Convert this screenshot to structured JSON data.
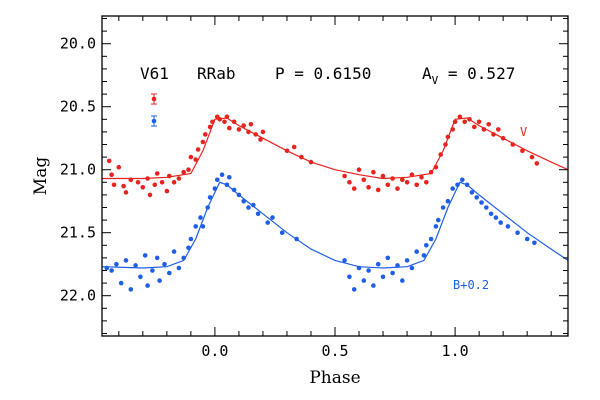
{
  "chart_data": {
    "type": "scatter",
    "xlabel": "Phase",
    "ylabel": "Mag",
    "xlim": [
      -0.47,
      1.47
    ],
    "ylim": [
      22.32,
      19.78
    ],
    "y_inverted": true,
    "x_ticks": [
      "0.0",
      "0.5",
      "1.0"
    ],
    "x_tick_values": [
      0.0,
      0.5,
      1.0
    ],
    "y_ticks": [
      "20.0",
      "20.5",
      "21.0",
      "21.5",
      "22.0"
    ],
    "y_tick_values": [
      20.0,
      20.5,
      21.0,
      21.5,
      22.0
    ],
    "grid": false,
    "header": {
      "star": "V61",
      "type": "RRab",
      "period": "P = 0.6150",
      "amp_prefix": "A",
      "amp_sub": "V",
      "amp_value": " = 0.527"
    },
    "series": [
      {
        "name": "V",
        "color": "#e8231e",
        "label_position": "right",
        "error_bar_mag": 0.04,
        "fit": [
          [
            -0.5,
            21.07
          ],
          [
            -0.3,
            21.07
          ],
          [
            -0.2,
            21.06
          ],
          [
            -0.1,
            21.03
          ],
          [
            -0.05,
            20.85
          ],
          [
            0.0,
            20.6
          ],
          [
            0.05,
            20.59
          ],
          [
            0.1,
            20.65
          ],
          [
            0.2,
            20.75
          ],
          [
            0.3,
            20.85
          ],
          [
            0.4,
            20.94
          ],
          [
            0.5,
            21.0
          ],
          [
            0.6,
            21.04
          ],
          [
            0.7,
            21.07
          ],
          [
            0.8,
            21.06
          ],
          [
            0.9,
            21.03
          ],
          [
            0.95,
            20.85
          ],
          [
            1.0,
            20.6
          ],
          [
            1.05,
            20.59
          ],
          [
            1.1,
            20.65
          ],
          [
            1.2,
            20.75
          ],
          [
            1.3,
            20.85
          ],
          [
            1.4,
            20.94
          ],
          [
            1.5,
            21.0
          ]
        ],
        "points": [
          [
            -0.44,
            20.93
          ],
          [
            -0.43,
            21.04
          ],
          [
            -0.42,
            21.12
          ],
          [
            -0.4,
            20.98
          ],
          [
            -0.38,
            21.13
          ],
          [
            -0.37,
            21.18
          ],
          [
            -0.35,
            21.08
          ],
          [
            -0.32,
            21.1
          ],
          [
            -0.3,
            21.14
          ],
          [
            -0.28,
            21.07
          ],
          [
            -0.27,
            21.2
          ],
          [
            -0.25,
            21.12
          ],
          [
            -0.24,
            21.03
          ],
          [
            -0.22,
            21.1
          ],
          [
            -0.2,
            21.17
          ],
          [
            -0.19,
            21.05
          ],
          [
            -0.17,
            21.1
          ],
          [
            -0.15,
            21.07
          ],
          [
            -0.13,
            21.02
          ],
          [
            -0.11,
            21.0
          ],
          [
            -0.1,
            20.9
          ],
          [
            -0.08,
            20.92
          ],
          [
            -0.07,
            20.84
          ],
          [
            -0.05,
            20.78
          ],
          [
            -0.04,
            20.72
          ],
          [
            -0.02,
            20.66
          ],
          [
            -0.01,
            20.62
          ],
          [
            0.01,
            20.58
          ],
          [
            0.02,
            20.6
          ],
          [
            0.04,
            20.62
          ],
          [
            0.05,
            20.58
          ],
          [
            0.06,
            20.67
          ],
          [
            0.08,
            20.62
          ],
          [
            0.1,
            20.68
          ],
          [
            0.12,
            20.65
          ],
          [
            0.14,
            20.7
          ],
          [
            0.15,
            20.64
          ],
          [
            0.17,
            20.72
          ],
          [
            0.19,
            20.76
          ],
          [
            0.2,
            20.7
          ],
          [
            0.3,
            20.85
          ],
          [
            0.33,
            20.82
          ],
          [
            0.36,
            20.9
          ],
          [
            0.4,
            20.94
          ],
          [
            0.54,
            21.05
          ],
          [
            0.56,
            21.1
          ],
          [
            0.58,
            21.15
          ],
          [
            0.6,
            21.0
          ],
          [
            0.62,
            21.08
          ],
          [
            0.64,
            21.14
          ],
          [
            0.66,
            21.02
          ],
          [
            0.68,
            21.16
          ],
          [
            0.7,
            21.05
          ],
          [
            0.72,
            21.12
          ],
          [
            0.74,
            21.07
          ],
          [
            0.76,
            21.15
          ],
          [
            0.78,
            21.08
          ],
          [
            0.8,
            21.1
          ],
          [
            0.82,
            21.04
          ],
          [
            0.84,
            21.12
          ],
          [
            0.86,
            21.06
          ],
          [
            0.88,
            21.1
          ],
          [
            0.9,
            21.02
          ],
          [
            0.92,
            20.98
          ],
          [
            0.94,
            20.88
          ],
          [
            0.96,
            20.8
          ],
          [
            0.97,
            20.74
          ],
          [
            0.99,
            20.68
          ],
          [
            1.0,
            20.62
          ],
          [
            1.02,
            20.58
          ],
          [
            1.04,
            20.62
          ],
          [
            1.06,
            20.6
          ],
          [
            1.08,
            20.66
          ],
          [
            1.1,
            20.62
          ],
          [
            1.12,
            20.68
          ],
          [
            1.14,
            20.64
          ],
          [
            1.16,
            20.72
          ],
          [
            1.18,
            20.68
          ],
          [
            1.2,
            20.75
          ],
          [
            1.24,
            20.8
          ],
          [
            1.28,
            20.85
          ],
          [
            1.32,
            20.9
          ],
          [
            1.34,
            20.95
          ]
        ]
      },
      {
        "name": "B+0.2",
        "color": "#1f5ee6",
        "label_position": "right",
        "error_bar_mag": 0.04,
        "fit": [
          [
            -0.5,
            21.77
          ],
          [
            -0.3,
            21.78
          ],
          [
            -0.2,
            21.77
          ],
          [
            -0.13,
            21.72
          ],
          [
            -0.08,
            21.55
          ],
          [
            -0.03,
            21.3
          ],
          [
            0.02,
            21.1
          ],
          [
            0.05,
            21.12
          ],
          [
            0.1,
            21.2
          ],
          [
            0.2,
            21.35
          ],
          [
            0.3,
            21.5
          ],
          [
            0.4,
            21.63
          ],
          [
            0.5,
            21.72
          ],
          [
            0.6,
            21.77
          ],
          [
            0.7,
            21.78
          ],
          [
            0.8,
            21.77
          ],
          [
            0.87,
            21.72
          ],
          [
            0.92,
            21.55
          ],
          [
            0.97,
            21.3
          ],
          [
            1.02,
            21.1
          ],
          [
            1.05,
            21.12
          ],
          [
            1.1,
            21.2
          ],
          [
            1.2,
            21.35
          ],
          [
            1.3,
            21.5
          ],
          [
            1.4,
            21.63
          ],
          [
            1.5,
            21.72
          ]
        ],
        "points": [
          [
            -0.45,
            21.78
          ],
          [
            -0.43,
            21.8
          ],
          [
            -0.41,
            21.75
          ],
          [
            -0.39,
            21.9
          ],
          [
            -0.37,
            21.72
          ],
          [
            -0.35,
            21.95
          ],
          [
            -0.33,
            21.76
          ],
          [
            -0.31,
            21.85
          ],
          [
            -0.29,
            21.68
          ],
          [
            -0.28,
            21.92
          ],
          [
            -0.26,
            21.8
          ],
          [
            -0.24,
            21.7
          ],
          [
            -0.23,
            21.88
          ],
          [
            -0.21,
            21.75
          ],
          [
            -0.19,
            21.82
          ],
          [
            -0.17,
            21.65
          ],
          [
            -0.15,
            21.78
          ],
          [
            -0.13,
            21.7
          ],
          [
            -0.11,
            21.62
          ],
          [
            -0.1,
            21.55
          ],
          [
            -0.08,
            21.45
          ],
          [
            -0.06,
            21.38
          ],
          [
            -0.05,
            21.45
          ],
          [
            -0.03,
            21.3
          ],
          [
            -0.02,
            21.22
          ],
          [
            0.0,
            21.15
          ],
          [
            0.01,
            21.08
          ],
          [
            0.03,
            21.04
          ],
          [
            0.05,
            21.12
          ],
          [
            0.06,
            21.06
          ],
          [
            0.08,
            21.16
          ],
          [
            0.1,
            21.2
          ],
          [
            0.12,
            21.25
          ],
          [
            0.14,
            21.3
          ],
          [
            0.16,
            21.28
          ],
          [
            0.18,
            21.35
          ],
          [
            0.22,
            21.42
          ],
          [
            0.24,
            21.38
          ],
          [
            0.28,
            21.5
          ],
          [
            0.34,
            21.55
          ],
          [
            0.54,
            21.72
          ],
          [
            0.56,
            21.85
          ],
          [
            0.58,
            21.95
          ],
          [
            0.6,
            21.78
          ],
          [
            0.62,
            21.88
          ],
          [
            0.64,
            21.8
          ],
          [
            0.66,
            21.92
          ],
          [
            0.68,
            21.75
          ],
          [
            0.7,
            21.85
          ],
          [
            0.72,
            21.7
          ],
          [
            0.74,
            21.82
          ],
          [
            0.76,
            21.76
          ],
          [
            0.78,
            21.88
          ],
          [
            0.8,
            21.72
          ],
          [
            0.82,
            21.78
          ],
          [
            0.84,
            21.65
          ],
          [
            0.87,
            21.68
          ],
          [
            0.88,
            21.6
          ],
          [
            0.9,
            21.55
          ],
          [
            0.92,
            21.45
          ],
          [
            0.93,
            21.4
          ],
          [
            0.95,
            21.3
          ],
          [
            0.97,
            21.25
          ],
          [
            0.99,
            21.15
          ],
          [
            1.01,
            21.12
          ],
          [
            1.03,
            21.08
          ],
          [
            1.05,
            21.12
          ],
          [
            1.07,
            21.18
          ],
          [
            1.09,
            21.22
          ],
          [
            1.11,
            21.26
          ],
          [
            1.13,
            21.3
          ],
          [
            1.15,
            21.35
          ],
          [
            1.17,
            21.38
          ],
          [
            1.19,
            21.42
          ],
          [
            1.22,
            21.45
          ],
          [
            1.26,
            21.5
          ],
          [
            1.3,
            21.55
          ],
          [
            1.33,
            21.58
          ]
        ]
      }
    ]
  }
}
